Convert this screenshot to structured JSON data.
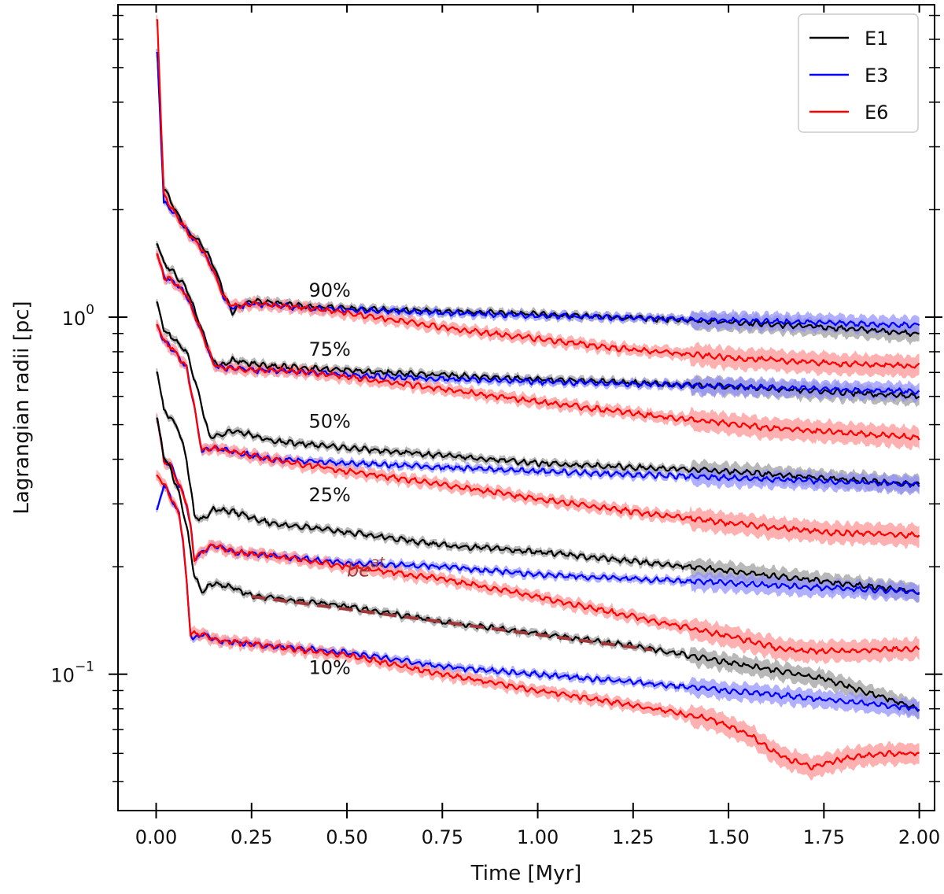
{
  "chart_data": {
    "type": "line",
    "xlabel": "Time [Myr]",
    "ylabel": "Lagrangian radii [pc]",
    "xlim": [
      -0.1,
      2.04
    ],
    "ylim": [
      0.0415,
      7.5
    ],
    "yscale": "log",
    "xticks": [
      "0.00",
      "0.25",
      "0.50",
      "0.75",
      "1.00",
      "1.25",
      "1.50",
      "1.75",
      "2.00"
    ],
    "xtick_values": [
      0,
      0.25,
      0.5,
      0.75,
      1.0,
      1.25,
      1.5,
      1.75,
      2.0
    ],
    "yticks": [
      {
        "base": "10",
        "exp": "0",
        "value": 1.0
      },
      {
        "base": "10",
        "exp": "−1",
        "value": 0.1
      }
    ],
    "legend": {
      "position": "top-right",
      "entries": [
        {
          "label": "E1",
          "color": "#000000"
        },
        {
          "label": "E3",
          "color": "#0000ff"
        },
        {
          "label": "E6",
          "color": "#ff0000"
        }
      ]
    },
    "band_colors": {
      "E1": "#9a9a9a",
      "E3": "#8f8fff",
      "E6": "#ff8f8f"
    },
    "fraction_labels": [
      {
        "text": "90%",
        "x": 0.4,
        "y": 1.14
      },
      {
        "text": "75%",
        "x": 0.4,
        "y": 0.78
      },
      {
        "text": "50%",
        "x": 0.4,
        "y": 0.49
      },
      {
        "text": "25%",
        "x": 0.4,
        "y": 0.305
      },
      {
        "text": "10%",
        "x": 0.4,
        "y": 0.1
      }
    ],
    "fit_annotation": {
      "base_text": "be",
      "exp_text": "at",
      "x": 0.5,
      "y": 0.188,
      "color": "#a0383a",
      "line_x": [
        0.25,
        1.3
      ],
      "line_y": [
        0.165,
        0.117
      ]
    },
    "series": [
      {
        "name": "E1",
        "fraction": "90%",
        "x": [
          0,
          0.003,
          0.02,
          0.05,
          0.08,
          0.12,
          0.15,
          0.18,
          0.2,
          0.22,
          0.25,
          0.3,
          0.4,
          0.6,
          1.0,
          1.5,
          1.8,
          2.0
        ],
        "y": [
          5.5,
          5.5,
          2.3,
          2.0,
          1.75,
          1.6,
          1.4,
          1.15,
          1.03,
          1.08,
          1.11,
          1.1,
          1.07,
          1.05,
          1.02,
          0.97,
          0.93,
          0.9
        ]
      },
      {
        "name": "E3",
        "fraction": "90%",
        "x": [
          0,
          0.003,
          0.02,
          0.05,
          0.08,
          0.12,
          0.15,
          0.18,
          0.2,
          0.22,
          0.25,
          0.3,
          0.4,
          0.6,
          1.0,
          1.5,
          2.0
        ],
        "y": [
          5.5,
          5.5,
          2.1,
          1.95,
          1.75,
          1.55,
          1.35,
          1.12,
          1.06,
          1.07,
          1.09,
          1.08,
          1.06,
          1.04,
          1.01,
          0.98,
          0.95
        ]
      },
      {
        "name": "E6",
        "fraction": "90%",
        "x": [
          0,
          0.003,
          0.02,
          0.05,
          0.08,
          0.12,
          0.15,
          0.18,
          0.2,
          0.22,
          0.25,
          0.3,
          0.4,
          0.5,
          0.6,
          0.8,
          1.0,
          1.2,
          1.5,
          1.8,
          2.0
        ],
        "y": [
          6.8,
          6.8,
          2.2,
          1.95,
          1.75,
          1.55,
          1.35,
          1.12,
          1.07,
          1.08,
          1.09,
          1.08,
          1.06,
          1.03,
          0.99,
          0.92,
          0.87,
          0.82,
          0.77,
          0.74,
          0.73
        ]
      },
      {
        "name": "E1",
        "fraction": "75%",
        "x": [
          0,
          0.003,
          0.02,
          0.05,
          0.08,
          0.12,
          0.15,
          0.17,
          0.2,
          0.25,
          0.3,
          0.4,
          0.6,
          1.0,
          1.5,
          2.0
        ],
        "y": [
          1.6,
          1.6,
          1.42,
          1.32,
          1.2,
          0.92,
          0.75,
          0.73,
          0.76,
          0.74,
          0.73,
          0.72,
          0.7,
          0.67,
          0.64,
          0.6
        ]
      },
      {
        "name": "E3",
        "fraction": "75%",
        "x": [
          0,
          0.003,
          0.02,
          0.05,
          0.08,
          0.12,
          0.15,
          0.17,
          0.2,
          0.25,
          0.3,
          0.4,
          0.6,
          1.0,
          1.5,
          2.0
        ],
        "y": [
          1.5,
          1.5,
          1.3,
          1.25,
          1.15,
          0.9,
          0.74,
          0.72,
          0.72,
          0.71,
          0.71,
          0.7,
          0.68,
          0.66,
          0.64,
          0.62
        ]
      },
      {
        "name": "E6",
        "fraction": "75%",
        "x": [
          0,
          0.003,
          0.02,
          0.05,
          0.08,
          0.12,
          0.15,
          0.17,
          0.2,
          0.25,
          0.3,
          0.4,
          0.5,
          0.7,
          1.0,
          1.3,
          1.6,
          2.0
        ],
        "y": [
          1.5,
          1.5,
          1.3,
          1.25,
          1.15,
          0.9,
          0.74,
          0.72,
          0.72,
          0.71,
          0.71,
          0.7,
          0.68,
          0.64,
          0.58,
          0.53,
          0.49,
          0.46
        ]
      },
      {
        "name": "E1",
        "fraction": "50%",
        "x": [
          0,
          0.003,
          0.02,
          0.05,
          0.08,
          0.11,
          0.14,
          0.17,
          0.2,
          0.25,
          0.3,
          0.5,
          0.75,
          1.0,
          1.5,
          2.0
        ],
        "y": [
          1.1,
          1.1,
          0.92,
          0.86,
          0.8,
          0.62,
          0.46,
          0.47,
          0.48,
          0.47,
          0.45,
          0.43,
          0.41,
          0.39,
          0.37,
          0.34
        ]
      },
      {
        "name": "E3",
        "fraction": "50%",
        "x": [
          0,
          0.003,
          0.02,
          0.05,
          0.08,
          0.1,
          0.12,
          0.15,
          0.2,
          0.25,
          0.3,
          0.5,
          0.75,
          1.0,
          1.5,
          2.0
        ],
        "y": [
          0.95,
          0.95,
          0.86,
          0.8,
          0.72,
          0.56,
          0.42,
          0.43,
          0.42,
          0.41,
          0.4,
          0.39,
          0.38,
          0.37,
          0.355,
          0.34
        ]
      },
      {
        "name": "E6",
        "fraction": "50%",
        "x": [
          0,
          0.003,
          0.02,
          0.05,
          0.08,
          0.1,
          0.12,
          0.15,
          0.2,
          0.25,
          0.3,
          0.5,
          0.75,
          1.0,
          1.25,
          1.5,
          1.75,
          2.0
        ],
        "y": [
          0.95,
          0.95,
          0.86,
          0.8,
          0.72,
          0.56,
          0.42,
          0.43,
          0.42,
          0.41,
          0.4,
          0.37,
          0.34,
          0.31,
          0.285,
          0.265,
          0.25,
          0.245
        ]
      },
      {
        "name": "E1",
        "fraction": "25%",
        "x": [
          0,
          0.003,
          0.02,
          0.04,
          0.06,
          0.08,
          0.1,
          0.12,
          0.15,
          0.2,
          0.25,
          0.3,
          0.5,
          0.75,
          1.0,
          1.5,
          2.0
        ],
        "y": [
          0.7,
          0.7,
          0.55,
          0.52,
          0.48,
          0.4,
          0.28,
          0.27,
          0.29,
          0.285,
          0.275,
          0.265,
          0.25,
          0.23,
          0.22,
          0.195,
          0.17
        ]
      },
      {
        "name": "E3",
        "fraction": "25%",
        "x": [
          0,
          0.003,
          0.02,
          0.04,
          0.06,
          0.08,
          0.09,
          0.1,
          0.12,
          0.15,
          0.2,
          0.3,
          0.5,
          0.75,
          1.0,
          1.5,
          2.0
        ],
        "y": [
          0.52,
          0.52,
          0.4,
          0.38,
          0.34,
          0.3,
          0.26,
          0.21,
          0.22,
          0.23,
          0.22,
          0.215,
          0.205,
          0.2,
          0.19,
          0.18,
          0.17
        ]
      },
      {
        "name": "E6",
        "fraction": "25%",
        "x": [
          0,
          0.003,
          0.02,
          0.04,
          0.06,
          0.08,
          0.09,
          0.1,
          0.12,
          0.15,
          0.2,
          0.3,
          0.5,
          0.75,
          1.0,
          1.25,
          1.5,
          1.65,
          1.75,
          2.0
        ],
        "y": [
          0.52,
          0.52,
          0.4,
          0.38,
          0.34,
          0.3,
          0.26,
          0.21,
          0.22,
          0.23,
          0.22,
          0.215,
          0.2,
          0.185,
          0.165,
          0.145,
          0.128,
          0.117,
          0.116,
          0.118
        ]
      },
      {
        "name": "E1",
        "fraction": "10%",
        "x": [
          0,
          0.003,
          0.02,
          0.04,
          0.06,
          0.08,
          0.1,
          0.12,
          0.15,
          0.2,
          0.25,
          0.5,
          0.75,
          1.0,
          1.25,
          1.5,
          1.75,
          1.85,
          2.0
        ],
        "y": [
          0.52,
          0.52,
          0.41,
          0.37,
          0.32,
          0.26,
          0.19,
          0.17,
          0.18,
          0.175,
          0.166,
          0.155,
          0.14,
          0.13,
          0.12,
          0.108,
          0.097,
          0.09,
          0.08
        ]
      },
      {
        "name": "E3",
        "fraction": "10%",
        "x": [
          0,
          0.003,
          0.02,
          0.04,
          0.06,
          0.07,
          0.08,
          0.09,
          0.1,
          0.12,
          0.15,
          0.2,
          0.3,
          0.5,
          0.75,
          1.0,
          1.25,
          1.5,
          1.75,
          2.0
        ],
        "y": [
          0.29,
          0.29,
          0.34,
          0.31,
          0.28,
          0.24,
          0.18,
          0.13,
          0.125,
          0.13,
          0.125,
          0.123,
          0.12,
          0.115,
          0.105,
          0.1,
          0.095,
          0.09,
          0.085,
          0.08
        ]
      },
      {
        "name": "E6",
        "fraction": "10%",
        "x": [
          0,
          0.003,
          0.02,
          0.04,
          0.06,
          0.07,
          0.08,
          0.09,
          0.1,
          0.12,
          0.15,
          0.2,
          0.3,
          0.5,
          0.75,
          1.0,
          1.25,
          1.45,
          1.55,
          1.65,
          1.72,
          1.8,
          1.9,
          2.0
        ],
        "y": [
          0.36,
          0.36,
          0.34,
          0.31,
          0.28,
          0.24,
          0.18,
          0.13,
          0.13,
          0.13,
          0.125,
          0.123,
          0.12,
          0.113,
          0.1,
          0.09,
          0.082,
          0.075,
          0.068,
          0.058,
          0.055,
          0.058,
          0.06,
          0.06
        ]
      }
    ]
  }
}
